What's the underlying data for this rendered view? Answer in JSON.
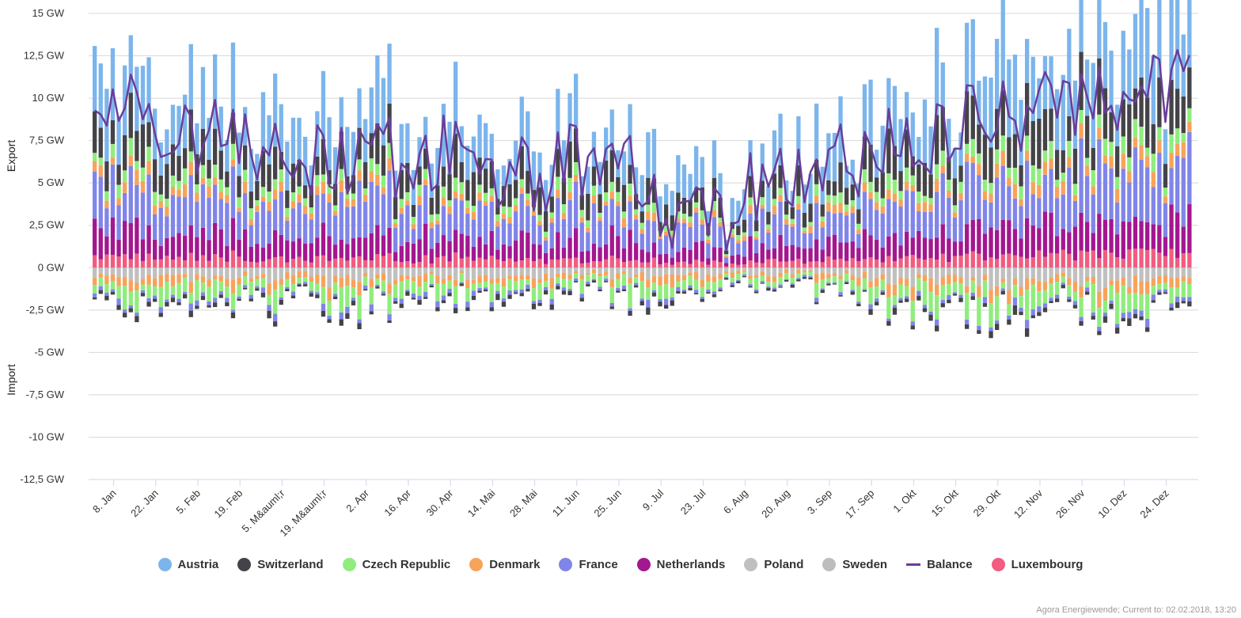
{
  "chart_data": {
    "type": "bar",
    "title": "",
    "ylabel_top": "Export",
    "ylabel_bottom": "Import",
    "ylim": [
      -12.5,
      15
    ],
    "y_ticks": [
      {
        "value": 15,
        "label": "15 GW"
      },
      {
        "value": 12.5,
        "label": "12,5 GW"
      },
      {
        "value": 10,
        "label": "10 GW"
      },
      {
        "value": 7.5,
        "label": "7,5 GW"
      },
      {
        "value": 5,
        "label": "5 GW"
      },
      {
        "value": 2.5,
        "label": "2,5 GW"
      },
      {
        "value": 0,
        "label": "0 GW"
      },
      {
        "value": -2.5,
        "label": "-2,5 GW"
      },
      {
        "value": -5,
        "label": "-5 GW"
      },
      {
        "value": -7.5,
        "label": "-7,5 GW"
      },
      {
        "value": -10,
        "label": "-10 GW"
      },
      {
        "value": -12.5,
        "label": "-12,5 GW"
      }
    ],
    "x_ticks": [
      "8. Jan",
      "22. Jan",
      "5. Feb",
      "19. Feb",
      "5. M&auml;r",
      "19. M&auml;r",
      "2. Apr",
      "16. Apr",
      "30. Apr",
      "14. Mai",
      "28. Mai",
      "11. Jun",
      "25. Jun",
      "9. Jul",
      "23. Jul",
      "6. Aug",
      "20. Aug",
      "3. Sep",
      "17. Sep",
      "1. Okt",
      "15. Okt",
      "29. Okt",
      "12. Nov",
      "26. Nov",
      "10. Dez",
      "24. Dez"
    ],
    "grid": true,
    "legend_position": "bottom",
    "series": [
      {
        "name": "Austria",
        "color": "#7cb5ec",
        "type": "bar"
      },
      {
        "name": "Switzerland",
        "color": "#434348",
        "type": "bar"
      },
      {
        "name": "Czech Republic",
        "color": "#90ed7d",
        "type": "bar"
      },
      {
        "name": "Denmark",
        "color": "#f7a35c",
        "type": "bar"
      },
      {
        "name": "France",
        "color": "#8085e9",
        "type": "bar"
      },
      {
        "name": "Netherlands",
        "color": "#a3178f",
        "type": "bar"
      },
      {
        "name": "Poland",
        "color": "#c0c0c0",
        "type": "bar"
      },
      {
        "name": "Sweden",
        "color": "#bdbdbd",
        "type": "bar"
      },
      {
        "name": "Balance",
        "color": "#6a3d9a",
        "type": "line"
      },
      {
        "name": "Luxembourg",
        "color": "#f15c80",
        "type": "bar"
      }
    ],
    "balance_profile": [
      [
        0,
        8.5
      ],
      [
        14,
        9.5
      ],
      [
        28,
        7.5
      ],
      [
        42,
        8.5
      ],
      [
        56,
        7.5
      ],
      [
        70,
        6.5
      ],
      [
        84,
        6.0
      ],
      [
        98,
        6.5
      ],
      [
        112,
        7.0
      ],
      [
        126,
        6.0
      ],
      [
        140,
        5.5
      ],
      [
        154,
        6.0
      ],
      [
        168,
        6.5
      ],
      [
        182,
        5.5
      ],
      [
        189,
        3.5
      ],
      [
        196,
        2.5
      ],
      [
        203,
        4.0
      ],
      [
        210,
        3.5
      ],
      [
        224,
        5.0
      ],
      [
        238,
        5.5
      ],
      [
        252,
        6.5
      ],
      [
        266,
        7.5
      ],
      [
        280,
        8.0
      ],
      [
        294,
        8.5
      ],
      [
        308,
        9.0
      ],
      [
        322,
        9.5
      ],
      [
        336,
        9.5
      ],
      [
        350,
        10.0
      ],
      [
        364,
        11.0
      ]
    ],
    "import_profile": [
      [
        0,
        -2.0
      ],
      [
        28,
        -2.0
      ],
      [
        56,
        -2.2
      ],
      [
        84,
        -2.3
      ],
      [
        112,
        -2.0
      ],
      [
        140,
        -1.8
      ],
      [
        168,
        -1.5
      ],
      [
        182,
        -2.5
      ],
      [
        196,
        -2.0
      ],
      [
        210,
        -1.2
      ],
      [
        224,
        -1.0
      ],
      [
        252,
        -1.5
      ],
      [
        266,
        -2.2
      ],
      [
        294,
        -2.5
      ],
      [
        322,
        -2.7
      ],
      [
        350,
        -2.5
      ],
      [
        364,
        -2.0
      ]
    ]
  },
  "credit": "Agora Energiewende; Current to: 02.02.2018, 13:20"
}
